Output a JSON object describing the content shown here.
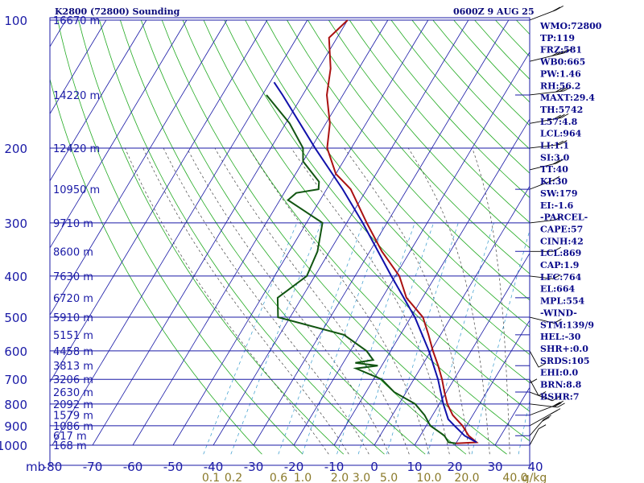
{
  "header": {
    "title": "K2800 (72800) Sounding",
    "time": "0600Z  9 AUG 25"
  },
  "indices": [
    "WMO:72800",
    "TP:119",
    "FRZ:581",
    "WB0:665",
    "PW:1.46",
    "RH:56.2",
    "MAXT:29.4",
    "TH:5742",
    "L57:4.8",
    "LCL:964",
    "LI:1.1",
    "SI:3.0",
    "TT:40",
    "KI:30",
    "SW:179",
    "EI:-1.6",
    "-PARCEL-",
    "CAPE:57",
    "CINH:42",
    "LCL:869",
    "CAP:1.9",
    "LFC:764",
    "EL:664",
    "MPL:554",
    "-WIND-",
    "STM:139/9",
    "HEL:-30",
    "SHR+:0.0",
    "SRDS:105",
    "EHI:0.0",
    "BRN:8.8",
    "BSHR:7"
  ],
  "colors": {
    "grid": "#1a1aa6",
    "dry_adiabat": "#22aa22",
    "moist_adiabat": "#444444",
    "mixing_ratio": "#3399cc",
    "temperature": "#aa1111",
    "dewpoint": "#115511",
    "parcel": "#1111aa",
    "wind": "#000000",
    "mixing_labels": "#8a7a2a"
  },
  "chart_data": {
    "type": "line",
    "title": "K2800 (72800) Sounding",
    "ylabel": "mb",
    "xlabel": "",
    "y_scale": "log",
    "ylim": [
      1000,
      100
    ],
    "xlim": [
      -80,
      40
    ],
    "pressure_ticks": [
      "100",
      "200",
      "300",
      "400",
      "500",
      "600",
      "700",
      "800",
      "900",
      "1000"
    ],
    "temperature_ticks": [
      "-80",
      "-70",
      "-60",
      "-50",
      "-40",
      "-30",
      "-20",
      "-10",
      "0",
      "10",
      "20",
      "30",
      "40"
    ],
    "height_labels": [
      {
        "p": 100,
        "label": "16670 m"
      },
      {
        "p": 150,
        "label": "14220 m"
      },
      {
        "p": 200,
        "label": "12420 m"
      },
      {
        "p": 250,
        "label": "10950 m"
      },
      {
        "p": 300,
        "label": "9710 m"
      },
      {
        "p": 350,
        "label": "8600 m"
      },
      {
        "p": 400,
        "label": "7630 m"
      },
      {
        "p": 450,
        "label": "6720 m"
      },
      {
        "p": 500,
        "label": "5910 m"
      },
      {
        "p": 550,
        "label": "5151 m"
      },
      {
        "p": 600,
        "label": "4458 m"
      },
      {
        "p": 650,
        "label": "3813 m"
      },
      {
        "p": 700,
        "label": "3206 m"
      },
      {
        "p": 750,
        "label": "2630 m"
      },
      {
        "p": 800,
        "label": "2092 m"
      },
      {
        "p": 850,
        "label": "1579 m"
      },
      {
        "p": 900,
        "label": "1086 m"
      },
      {
        "p": 950,
        "label": "617 m"
      },
      {
        "p": 1000,
        "label": "168 m"
      }
    ],
    "mixing_ratio_labels": [
      "0.1",
      "0.2",
      "0.6",
      "1.0",
      "2.0",
      "3.0",
      "5.0",
      "10.0",
      "20.0",
      "40.0",
      "g/kg"
    ],
    "series": [
      {
        "name": "Temperature",
        "points": [
          [
            100,
            -70
          ],
          [
            110,
            -72
          ],
          [
            130,
            -67
          ],
          [
            150,
            -64
          ],
          [
            175,
            -59
          ],
          [
            200,
            -56
          ],
          [
            230,
            -50
          ],
          [
            250,
            -44
          ],
          [
            300,
            -35
          ],
          [
            350,
            -27
          ],
          [
            400,
            -19
          ],
          [
            450,
            -14
          ],
          [
            500,
            -7
          ],
          [
            550,
            -3
          ],
          [
            600,
            0.5
          ],
          [
            650,
            4
          ],
          [
            700,
            7
          ],
          [
            750,
            9.5
          ],
          [
            800,
            12
          ],
          [
            850,
            15
          ],
          [
            900,
            19
          ],
          [
            950,
            22
          ],
          [
            985,
            25
          ],
          [
            990,
            20
          ]
        ]
      },
      {
        "name": "Dewpoint",
        "points": [
          [
            150,
            -79
          ],
          [
            175,
            -69
          ],
          [
            200,
            -62
          ],
          [
            215,
            -60
          ],
          [
            240,
            -53
          ],
          [
            250,
            -52
          ],
          [
            255,
            -57
          ],
          [
            265,
            -58
          ],
          [
            300,
            -46
          ],
          [
            350,
            -43
          ],
          [
            400,
            -42
          ],
          [
            450,
            -46
          ],
          [
            500,
            -43
          ],
          [
            550,
            -24
          ],
          [
            600,
            -16
          ],
          [
            630,
            -13
          ],
          [
            640,
            -17
          ],
          [
            650,
            -11
          ],
          [
            660,
            -16
          ],
          [
            700,
            -8
          ],
          [
            750,
            -3
          ],
          [
            800,
            4
          ],
          [
            850,
            8
          ],
          [
            900,
            11
          ],
          [
            950,
            16
          ],
          [
            985,
            18
          ],
          [
            990,
            20
          ]
        ]
      },
      {
        "name": "Parcel",
        "points": [
          [
            985,
            25
          ],
          [
            950,
            21
          ],
          [
            900,
            17
          ],
          [
            869,
            14.5
          ],
          [
            800,
            11
          ],
          [
            700,
            6
          ],
          [
            600,
            -0.5
          ],
          [
            500,
            -9
          ],
          [
            400,
            -21
          ],
          [
            300,
            -36
          ],
          [
            250,
            -46
          ],
          [
            200,
            -59
          ],
          [
            150,
            -75
          ],
          [
            140,
            -79
          ]
        ]
      }
    ],
    "wind_barbs": [
      {
        "p": 100,
        "dir": 300,
        "kt": 20
      },
      {
        "p": 125,
        "dir": 290,
        "kt": 35
      },
      {
        "p": 150,
        "dir": 280,
        "kt": 30
      },
      {
        "p": 175,
        "dir": 285,
        "kt": 25
      },
      {
        "p": 200,
        "dir": 280,
        "kt": 20
      },
      {
        "p": 225,
        "dir": 290,
        "kt": 15
      },
      {
        "p": 250,
        "dir": 300,
        "kt": 10
      },
      {
        "p": 300,
        "dir": 280,
        "kt": 10
      },
      {
        "p": 350,
        "dir": 270,
        "kt": 5
      },
      {
        "p": 400,
        "dir": 260,
        "kt": 5
      },
      {
        "p": 500,
        "dir": 250,
        "kt": 10
      },
      {
        "p": 600,
        "dir": 200,
        "kt": 10
      },
      {
        "p": 650,
        "dir": 180,
        "kt": 10
      },
      {
        "p": 700,
        "dir": 200,
        "kt": 10
      },
      {
        "p": 750,
        "dir": 240,
        "kt": 10
      },
      {
        "p": 800,
        "dir": 260,
        "kt": 15
      },
      {
        "p": 850,
        "dir": 300,
        "kt": 20
      },
      {
        "p": 900,
        "dir": 310,
        "kt": 20
      },
      {
        "p": 950,
        "dir": 330,
        "kt": 15
      },
      {
        "p": 1000,
        "dir": 340,
        "kt": 10
      }
    ],
    "grid": true,
    "legend": "none"
  }
}
